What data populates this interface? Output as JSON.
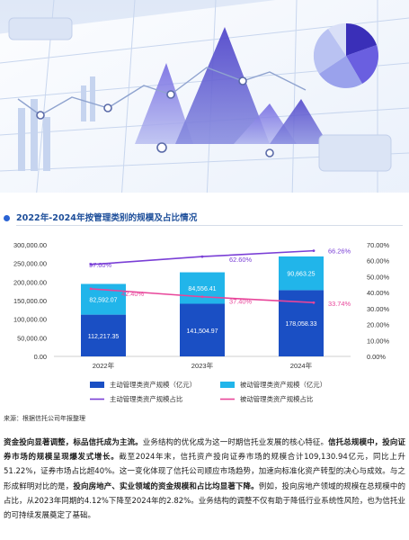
{
  "chart_title": "2022年-2024年按管理类别的规模及占比情况",
  "source": "来源：根据信托公司年报整理",
  "chart_data": {
    "type": "bar",
    "categories": [
      "2022年",
      "2023年",
      "2024年"
    ],
    "series": [
      {
        "name": "主动管理类资产规模（亿元）",
        "kind": "bar",
        "axis": "left",
        "color": "#1a4fc4",
        "values": [
          112217.35,
          141504.97,
          178058.33
        ],
        "labels": [
          "112,217.35",
          "141,504.97",
          "178,058.33"
        ]
      },
      {
        "name": "被动管理类资产规模（亿元）",
        "kind": "bar",
        "axis": "left",
        "color": "#21b5ea",
        "values": [
          82592.07,
          84556.41,
          90663.25
        ],
        "labels": [
          "82,592.07",
          "84,556.41",
          "90,663.25"
        ]
      },
      {
        "name": "主动管理类资产规模占比",
        "kind": "line",
        "axis": "right",
        "color": "#7a3fd6",
        "values": [
          57.6,
          62.6,
          66.26
        ],
        "labels": [
          "57.60%",
          "62.60%",
          "66.26%"
        ]
      },
      {
        "name": "被动管理类资产规模占比",
        "kind": "line",
        "axis": "right",
        "color": "#e8459a",
        "values": [
          42.4,
          37.4,
          33.74
        ],
        "labels": [
          "42.40%",
          "37.40%",
          "33.74%"
        ]
      }
    ],
    "y_left": {
      "min": 0,
      "max": 300000,
      "ticks": [
        "0.00",
        "50,000.00",
        "100,000.00",
        "150,000.00",
        "200,000.00",
        "250,000.00",
        "300,000.00"
      ]
    },
    "y_right": {
      "min": 0,
      "max": 70,
      "ticks": [
        "0.00%",
        "10.00%",
        "20.00%",
        "30.00%",
        "40.00%",
        "50.00%",
        "60.00%",
        "70.00%"
      ]
    },
    "legend_position": "bottom",
    "grid": false
  },
  "paragraph": [
    {
      "bold": true,
      "text": "资金投向显著调整，标品信托成为主流。"
    },
    {
      "bold": false,
      "text": "业务结构的优化成为这一时期信托业发展的核心特征。"
    },
    {
      "bold": true,
      "text": "信托总规模中，投向证券市场的规模呈现爆发式增长。"
    },
    {
      "bold": false,
      "text": "截至2024年末，信托资产投向证券市场的规模合计109,130.94亿元，同比上升51.22%，证券市场占比超40%。这一变化体现了信托公司顺应市场趋势，加速向标准化资产转型的决心与成效。与之形成鲜明对比的是，"
    },
    {
      "bold": true,
      "text": "投向房地产、实业领域的资金规模和占比均显著下降。"
    },
    {
      "bold": false,
      "text": "例如，投向房地产领域的规模在总规模中的占比，从2023年同期的4.12%下降至2024年的2.82%。业务结构的调整不仅有助于降低行业系统性风险，也为信托业的可持续发展奠定了基础。"
    }
  ]
}
